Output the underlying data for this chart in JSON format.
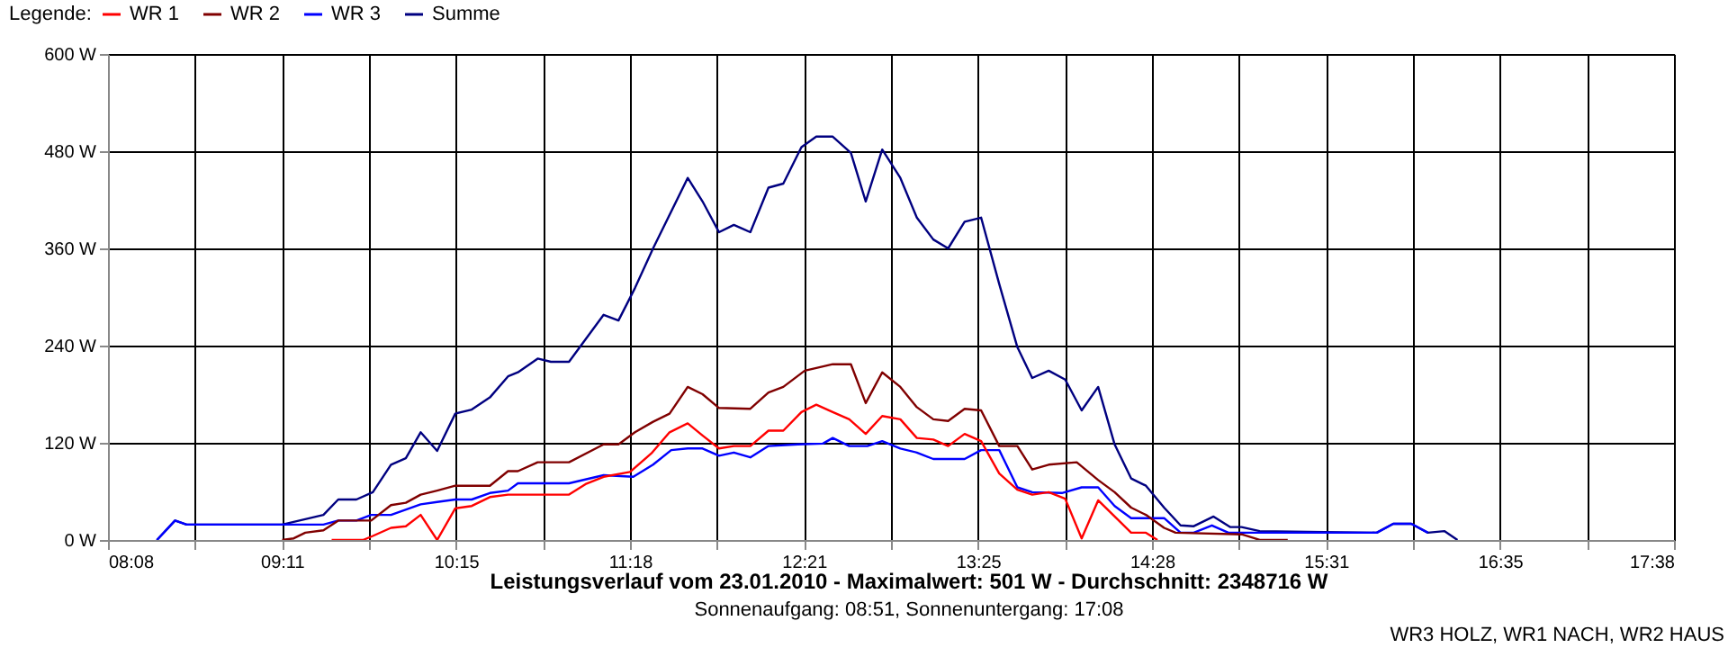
{
  "chart_data": {
    "type": "line",
    "title": "Leistungsverlauf vom 23.01.2010 - Maximalwert: 501 W - Durchschnitt: 2348716 W",
    "subtitle": "Sonnenaufgang: 08:51, Sonnenuntergang: 17:08",
    "annotations": [
      "WR3 HOLZ, WR1 NACH, WR2 HAUS"
    ],
    "legend_title": "Legende:",
    "legend": "top left",
    "grid": true,
    "marker": "none",
    "line_style": "solid",
    "xlim": [
      8.1333,
      17.6333
    ],
    "ylim": [
      0,
      600
    ],
    "xticks": [
      {
        "value": 8.1333,
        "label": "08:08"
      },
      {
        "value": 8.6611,
        "label": null
      },
      {
        "value": 9.1889,
        "label": "09:11"
      },
      {
        "value": 9.7167,
        "label": null
      },
      {
        "value": 10.2444,
        "label": "10:15"
      },
      {
        "value": 10.7722,
        "label": null
      },
      {
        "value": 11.3,
        "label": "11:18"
      },
      {
        "value": 11.8278,
        "label": null
      },
      {
        "value": 12.3556,
        "label": "12:21"
      },
      {
        "value": 12.8833,
        "label": null
      },
      {
        "value": 13.4111,
        "label": "13:25"
      },
      {
        "value": 13.9389,
        "label": null
      },
      {
        "value": 14.4667,
        "label": "14:28"
      },
      {
        "value": 14.9944,
        "label": null
      },
      {
        "value": 15.5222,
        "label": "15:31"
      },
      {
        "value": 16.05,
        "label": null
      },
      {
        "value": 16.5778,
        "label": "16:35"
      },
      {
        "value": 17.1056,
        "label": null
      },
      {
        "value": 17.6333,
        "label": "17:38"
      }
    ],
    "yticks": [
      {
        "value": 0,
        "label": "0 W"
      },
      {
        "value": 120,
        "label": "120 W"
      },
      {
        "value": 240,
        "label": "240 W"
      },
      {
        "value": 360,
        "label": "360 W"
      },
      {
        "value": 480,
        "label": "480 W"
      },
      {
        "value": 600,
        "label": "600 W"
      }
    ],
    "series": [
      {
        "name": "WR 1",
        "color": "#ff0000",
        "x": [
          9.49,
          9.68,
          9.74,
          9.85,
          9.94,
          10.03,
          10.13,
          10.24,
          10.34,
          10.45,
          10.56,
          10.93,
          11.03,
          11.14,
          11.3,
          11.43,
          11.54,
          11.65,
          11.74,
          11.84,
          11.93,
          12.03,
          12.14,
          12.23,
          12.34,
          12.43,
          12.53,
          12.63,
          12.73,
          12.83,
          12.94,
          13.04,
          13.14,
          13.23,
          13.33,
          13.43,
          13.54,
          13.65,
          13.74,
          13.84,
          13.94,
          14.04,
          14.14,
          14.25,
          14.34,
          14.43,
          14.5
        ],
        "values": [
          0,
          0,
          5,
          15,
          17,
          31,
          0,
          39,
          42,
          53,
          56,
          56,
          69,
          78,
          84,
          107,
          133,
          144,
          129,
          113,
          116,
          116,
          135,
          135,
          158,
          167,
          158,
          149,
          131,
          153,
          149,
          126,
          124,
          116,
          131,
          122,
          82,
          62,
          56,
          59,
          51,
          2,
          49,
          27,
          9,
          9,
          0
        ]
      },
      {
        "name": "WR 2",
        "color": "#800000",
        "x": [
          9.19,
          9.26,
          9.33,
          9.44,
          9.53,
          9.73,
          9.85,
          9.94,
          10.03,
          10.13,
          10.24,
          10.45,
          10.56,
          10.62,
          10.74,
          10.93,
          11.14,
          11.23,
          11.33,
          11.44,
          11.54,
          11.65,
          11.74,
          11.84,
          12.03,
          12.14,
          12.23,
          12.36,
          12.53,
          12.64,
          12.73,
          12.83,
          12.94,
          13.04,
          13.14,
          13.23,
          13.33,
          13.43,
          13.54,
          13.65,
          13.74,
          13.84,
          14.01,
          14.14,
          14.24,
          14.34,
          14.43,
          14.54,
          14.61,
          15.01,
          15.09,
          15.12,
          15.29
        ],
        "values": [
          0,
          2,
          9,
          12,
          24,
          24,
          43,
          46,
          56,
          61,
          67,
          67,
          85,
          85,
          96,
          96,
          118,
          118,
          133,
          146,
          156,
          189,
          180,
          163,
          162,
          182,
          189,
          209,
          217,
          217,
          169,
          207,
          189,
          164,
          149,
          147,
          162,
          160,
          116,
          116,
          87,
          93,
          96,
          74,
          59,
          40,
          31,
          15,
          9,
          7,
          2,
          0,
          0
        ]
      },
      {
        "name": "WR 3",
        "color": "#0000ff",
        "x": [
          8.43,
          8.54,
          8.61,
          9.19,
          9.44,
          9.53,
          9.64,
          9.73,
          9.85,
          10.03,
          10.13,
          10.24,
          10.34,
          10.45,
          10.56,
          10.62,
          10.93,
          11.14,
          11.32,
          11.44,
          11.55,
          11.65,
          11.74,
          11.84,
          11.93,
          12.03,
          12.14,
          12.32,
          12.47,
          12.53,
          12.63,
          12.74,
          12.83,
          12.94,
          13.04,
          13.14,
          13.33,
          13.43,
          13.54,
          13.65,
          13.74,
          13.92,
          14.04,
          14.14,
          14.24,
          14.34,
          14.54,
          14.64,
          14.72,
          14.83,
          14.93,
          15.26,
          15.83,
          15.93,
          16.04,
          16.14
        ],
        "values": [
          0,
          24,
          19,
          19,
          19,
          24,
          24,
          31,
          31,
          44,
          47,
          50,
          50,
          58,
          61,
          70,
          70,
          80,
          78,
          93,
          111,
          113,
          113,
          104,
          108,
          102,
          116,
          118,
          119,
          126,
          116,
          116,
          122,
          113,
          108,
          100,
          100,
          111,
          111,
          65,
          59,
          58,
          65,
          65,
          42,
          27,
          27,
          9,
          9,
          18,
          9,
          9,
          9,
          20,
          20,
          9
        ]
      },
      {
        "name": "Summe",
        "color": "#000080",
        "x": [
          8.43,
          8.54,
          8.61,
          9.19,
          9.44,
          9.53,
          9.64,
          9.74,
          9.85,
          9.94,
          10.03,
          10.13,
          10.24,
          10.34,
          10.45,
          10.56,
          10.62,
          10.74,
          10.82,
          10.93,
          11.14,
          11.23,
          11.33,
          11.44,
          11.65,
          11.74,
          11.84,
          11.93,
          12.03,
          12.14,
          12.23,
          12.34,
          12.43,
          12.53,
          12.64,
          12.73,
          12.83,
          12.94,
          13.04,
          13.14,
          13.23,
          13.33,
          13.43,
          13.54,
          13.65,
          13.74,
          13.84,
          13.94,
          14.04,
          14.14,
          14.24,
          14.34,
          14.43,
          14.54,
          14.64,
          14.72,
          14.84,
          14.94,
          15.01,
          15.12,
          15.83,
          15.93,
          16.04,
          16.14,
          16.24,
          16.32
        ],
        "values": [
          0,
          24,
          19,
          19,
          31,
          50,
          50,
          59,
          93,
          101,
          133,
          110,
          156,
          161,
          176,
          202,
          207,
          224,
          220,
          220,
          278,
          271,
          311,
          360,
          447,
          418,
          380,
          389,
          380,
          435,
          440,
          485,
          498,
          498,
          478,
          418,
          482,
          447,
          398,
          371,
          360,
          393,
          398,
          316,
          238,
          200,
          209,
          198,
          160,
          189,
          118,
          76,
          67,
          40,
          18,
          17,
          29,
          16,
          16,
          11,
          9,
          20,
          20,
          9,
          11,
          0
        ]
      }
    ]
  }
}
